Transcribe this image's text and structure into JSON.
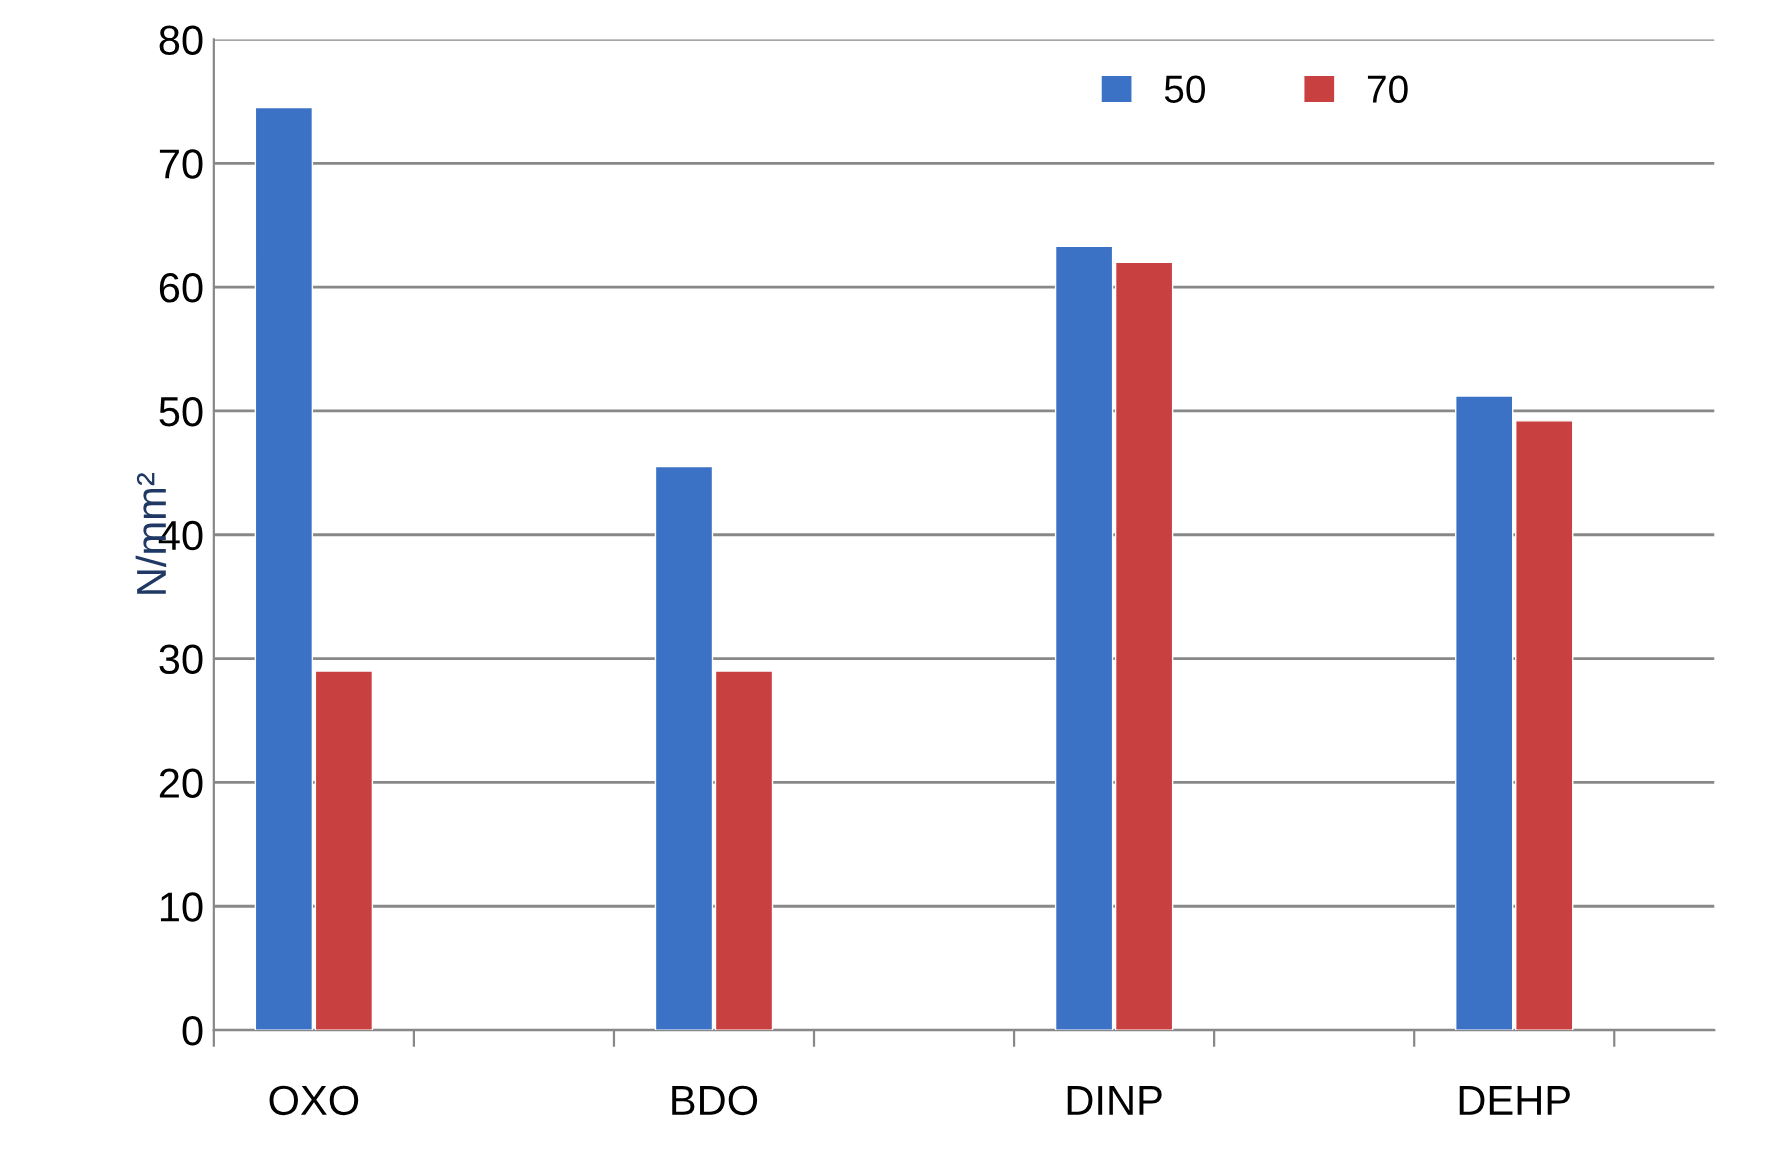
{
  "chart_data": {
    "type": "bar",
    "ylabel": "N/mm²",
    "categories": [
      "OXO",
      null,
      "BDO",
      null,
      "DINP",
      null,
      "DEHP",
      null
    ],
    "series": [
      {
        "name": "50",
        "color": "#3b72c6",
        "values": [
          74.5,
          null,
          45.5,
          null,
          63.3,
          null,
          51.2,
          null
        ]
      },
      {
        "name": "70",
        "color": "#c8403f",
        "values": [
          29,
          null,
          29,
          null,
          62,
          null,
          49.2,
          null
        ]
      }
    ],
    "ylim": [
      0,
      80
    ],
    "yticks": [
      0,
      10,
      20,
      30,
      40,
      50,
      60,
      70,
      80
    ],
    "grid": "y",
    "legend": "top right"
  }
}
